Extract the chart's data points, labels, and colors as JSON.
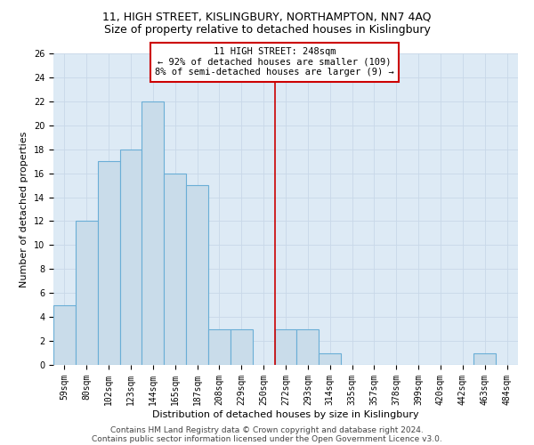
{
  "title1": "11, HIGH STREET, KISLINGBURY, NORTHAMPTON, NN7 4AQ",
  "title2": "Size of property relative to detached houses in Kislingbury",
  "xlabel": "Distribution of detached houses by size in Kislingbury",
  "ylabel": "Number of detached properties",
  "bar_labels": [
    "59sqm",
    "80sqm",
    "102sqm",
    "123sqm",
    "144sqm",
    "165sqm",
    "187sqm",
    "208sqm",
    "229sqm",
    "250sqm",
    "272sqm",
    "293sqm",
    "314sqm",
    "335sqm",
    "357sqm",
    "378sqm",
    "399sqm",
    "420sqm",
    "442sqm",
    "463sqm",
    "484sqm"
  ],
  "bar_values": [
    5,
    12,
    17,
    18,
    22,
    16,
    15,
    3,
    3,
    0,
    3,
    3,
    1,
    0,
    0,
    0,
    0,
    0,
    0,
    1,
    0
  ],
  "bar_color": "#c9dcea",
  "bar_edge_color": "#6aaed6",
  "property_line_x": 9.5,
  "annotation_line1": "11 HIGH STREET: 248sqm",
  "annotation_line2": "← 92% of detached houses are smaller (109)",
  "annotation_line3": "8% of semi-detached houses are larger (9) →",
  "annotation_box_color": "#ffffff",
  "annotation_box_edge": "#cc0000",
  "red_line_color": "#cc0000",
  "ylim": [
    0,
    26
  ],
  "yticks": [
    0,
    2,
    4,
    6,
    8,
    10,
    12,
    14,
    16,
    18,
    20,
    22,
    24,
    26
  ],
  "grid_color": "#c8d8e8",
  "background_color": "#ddeaf5",
  "footer1": "Contains HM Land Registry data © Crown copyright and database right 2024.",
  "footer2": "Contains public sector information licensed under the Open Government Licence v3.0.",
  "title1_fontsize": 9,
  "title2_fontsize": 9,
  "axis_fontsize": 8,
  "tick_fontsize": 7,
  "footer_fontsize": 6.5,
  "annotation_fontsize": 7.5
}
